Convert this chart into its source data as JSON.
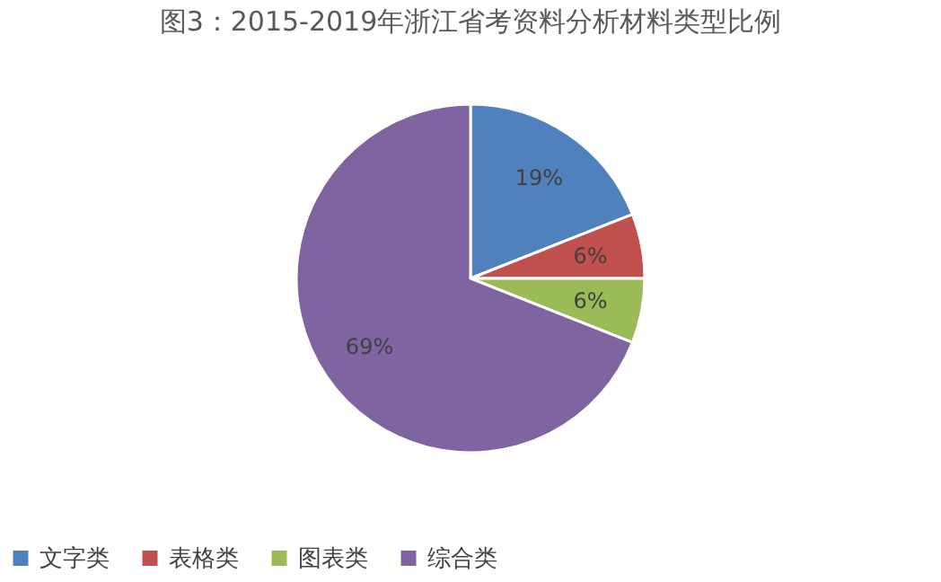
{
  "chart_data": {
    "type": "pie",
    "title": "图3：2015-2019年浙江省考资料分析材料类型比例",
    "categories": [
      "文字类",
      "表格类",
      "图表类",
      "综合类"
    ],
    "values": [
      19,
      6,
      6,
      69
    ],
    "colors": [
      "#4f81bd",
      "#c0504d",
      "#9bbb59",
      "#8064a2"
    ],
    "value_labels": [
      "19%",
      "6%",
      "6%",
      "69%"
    ],
    "legend": "bottom"
  }
}
